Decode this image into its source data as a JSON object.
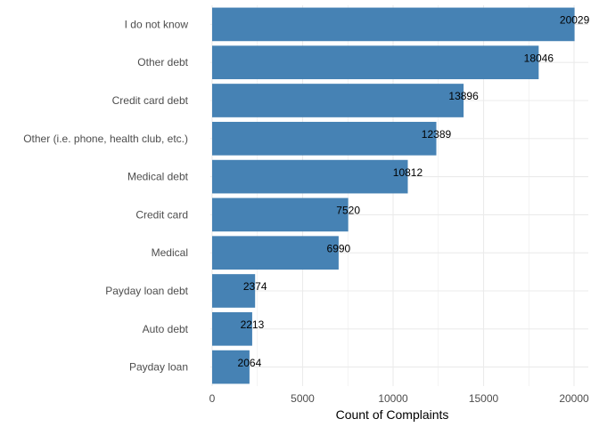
{
  "chart_data": {
    "type": "bar",
    "orientation": "horizontal",
    "categories": [
      "I do not know",
      "Other debt",
      "Credit card debt",
      "Other (i.e. phone, health club, etc.)",
      "Medical debt",
      "Credit card",
      "Medical",
      "Payday loan debt",
      "Auto debt",
      "Payday loan"
    ],
    "values": [
      20029,
      18046,
      13896,
      12389,
      10812,
      7520,
      6990,
      2374,
      2213,
      2064
    ],
    "data_labels": [
      "20029",
      "18046",
      "13896",
      "12389",
      "10812",
      "7520",
      "6990",
      "2374",
      "2213",
      "2064"
    ],
    "xlabel": "Count of Complaints",
    "ylabel": "",
    "xlim": [
      0,
      20029
    ],
    "x_ticks": [
      0,
      5000,
      10000,
      15000,
      20000
    ],
    "x_tick_labels": [
      "0",
      "5000",
      "10000",
      "15000",
      "20000"
    ],
    "grid": true,
    "bar_color": "#4682B4",
    "grid_color": "#ebebeb"
  }
}
